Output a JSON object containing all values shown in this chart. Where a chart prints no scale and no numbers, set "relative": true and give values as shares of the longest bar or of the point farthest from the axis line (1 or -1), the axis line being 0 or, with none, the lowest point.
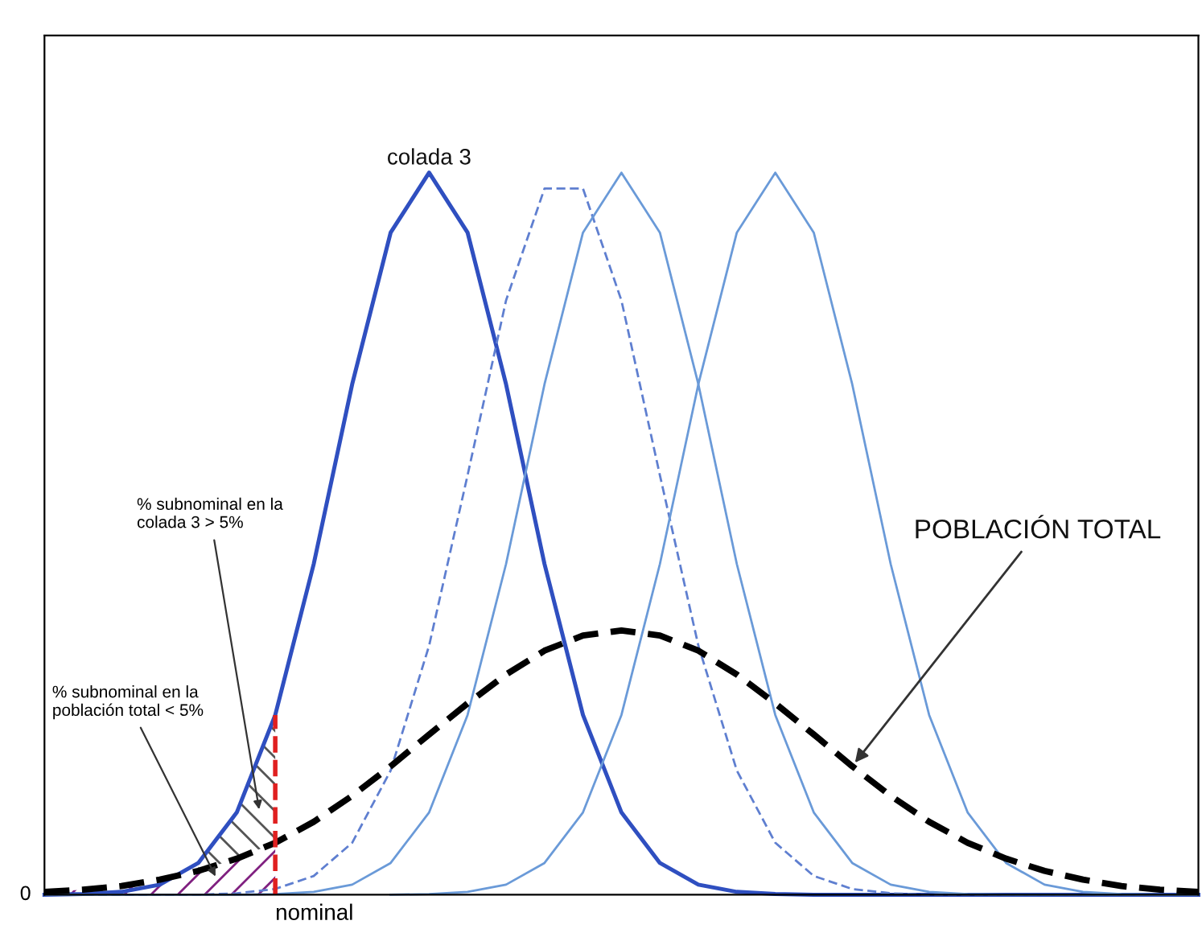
{
  "chart_data": {
    "type": "line",
    "relative": true,
    "legend": false,
    "marker": "none",
    "categories": [
      null,
      null,
      null,
      null,
      null,
      null,
      null,
      null,
      null,
      null,
      null,
      null,
      null,
      null,
      null,
      null,
      null,
      null,
      null,
      null,
      null,
      null,
      null,
      null,
      null,
      null,
      null,
      null,
      null,
      null,
      null
    ],
    "series": [
      {
        "name": "colada 3",
        "color": "#2f4fc0",
        "line_style": "solid",
        "values": [
          0,
          0.001,
          0.004,
          0.014,
          0.044,
          0.114,
          0.249,
          0.458,
          0.707,
          0.917,
          1,
          0.917,
          0.707,
          0.458,
          0.249,
          0.114,
          0.044,
          0.014,
          0.004,
          0.001,
          0,
          0,
          0,
          0,
          0,
          0,
          0,
          0,
          0,
          0,
          0
        ]
      },
      {
        "color": "#5f7fd0",
        "line_style": "dashed",
        "values": [
          0,
          0,
          0,
          0,
          0,
          0.002,
          0.008,
          0.026,
          0.072,
          0.172,
          0.345,
          0.581,
          0.823,
          0.978,
          0.978,
          0.823,
          0.581,
          0.345,
          0.172,
          0.072,
          0.026,
          0.008,
          0.002,
          0,
          0,
          0,
          0,
          0,
          0,
          0,
          0
        ]
      },
      {
        "color": "#6a9ad8",
        "line_style": "solid",
        "values": [
          0,
          0,
          0,
          0,
          0,
          0,
          0.001,
          0.004,
          0.014,
          0.044,
          0.114,
          0.249,
          0.458,
          0.707,
          0.917,
          1,
          0.917,
          0.707,
          0.458,
          0.249,
          0.114,
          0.044,
          0.014,
          0.004,
          0.001,
          0,
          0,
          0,
          0,
          0,
          0
        ]
      },
      {
        "color": "#6a9ad8",
        "line_style": "solid",
        "values": [
          null,
          null,
          null,
          null,
          null,
          null,
          null,
          null,
          null,
          0,
          0.001,
          0.004,
          0.014,
          0.044,
          0.114,
          0.249,
          0.458,
          0.707,
          0.917,
          1,
          0.917,
          0.707,
          0.458,
          0.249,
          0.114,
          0.044,
          0.014,
          0.004,
          0.001,
          0,
          0
        ]
      },
      {
        "name": "POBLACIÓN TOTAL",
        "color": "#000000",
        "line_style": "dashed",
        "values": [
          0.004,
          0.007,
          0.012,
          0.021,
          0.033,
          0.05,
          0.072,
          0.101,
          0.137,
          0.178,
          0.222,
          0.265,
          0.305,
          0.338,
          0.359,
          0.366,
          0.359,
          0.338,
          0.305,
          0.265,
          0.222,
          0.178,
          0.137,
          0.101,
          0.072,
          0.05,
          0.033,
          0.021,
          0.012,
          0.007,
          0.004
        ]
      }
    ],
    "annotations": [
      "% subnominal en la\ncolada 3 > 5%",
      "% subnominal en la\npoblación total < 5%",
      "0",
      "nominal"
    ]
  }
}
